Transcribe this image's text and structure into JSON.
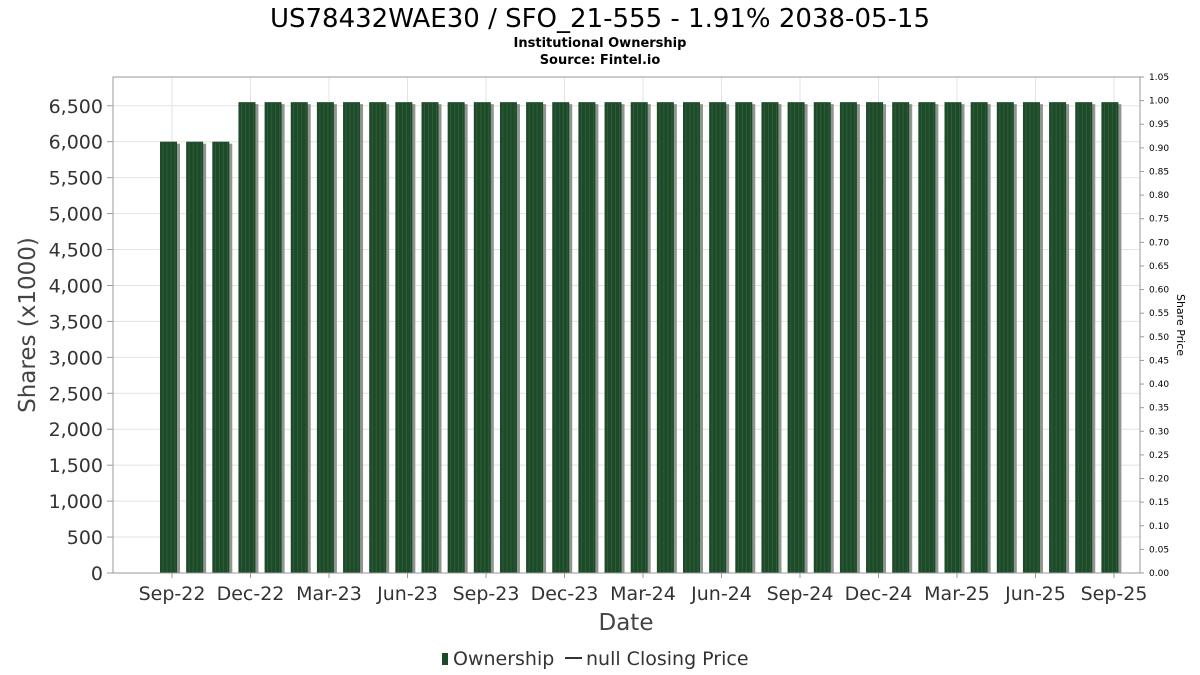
{
  "chart_data": {
    "type": "bar",
    "title": "US78432WAE30 / SFO_21-555 - 1.91% 2038-05-15",
    "subtitle_lines": [
      "Institutional Ownership",
      "Source: Fintel.io"
    ],
    "xlabel": "Date",
    "ylabel": "Shares (x1000)",
    "y2label": "Share Price",
    "ylim": [
      0,
      6900
    ],
    "y2lim": [
      0,
      1.05
    ],
    "yticks": [
      "0",
      "500",
      "1,000",
      "1,500",
      "2,000",
      "2,500",
      "3,000",
      "3,500",
      "4,000",
      "4,500",
      "5,000",
      "5,500",
      "6,000",
      "6,500"
    ],
    "y2ticks": [
      "0.00",
      "0.05",
      "0.10",
      "0.15",
      "0.20",
      "0.25",
      "0.30",
      "0.35",
      "0.40",
      "0.45",
      "0.50",
      "0.55",
      "0.60",
      "0.65",
      "0.70",
      "0.75",
      "0.80",
      "0.85",
      "0.90",
      "0.95",
      "1.00",
      "1.05"
    ],
    "xticks": [
      "Sep-22",
      "Dec-22",
      "Mar-23",
      "Jun-23",
      "Sep-23",
      "Dec-23",
      "Mar-24",
      "Jun-24",
      "Sep-24",
      "Dec-24",
      "Mar-25",
      "Jun-25",
      "Sep-25"
    ],
    "grid": true,
    "legend_position": "bottom",
    "colors": {
      "bar": "#1e4a2a",
      "bar_shadow": "#8f968f",
      "grid": "#e3e3e3",
      "frame": "#999999"
    },
    "series": [
      {
        "name": "Ownership",
        "values": [
          6000,
          6000,
          6000,
          6550,
          6550,
          6550,
          6550,
          6550,
          6550,
          6550,
          6550,
          6550,
          6550,
          6550,
          6550,
          6550,
          6550,
          6550,
          6550,
          6550,
          6550,
          6550,
          6550,
          6550,
          6550,
          6550,
          6550,
          6550,
          6550,
          6550,
          6550,
          6550,
          6550,
          6550,
          6550,
          6550,
          6550
        ]
      }
    ],
    "legend": [
      {
        "label": "Ownership",
        "kind": "bar"
      },
      {
        "label": "null Closing Price",
        "kind": "line"
      }
    ]
  }
}
